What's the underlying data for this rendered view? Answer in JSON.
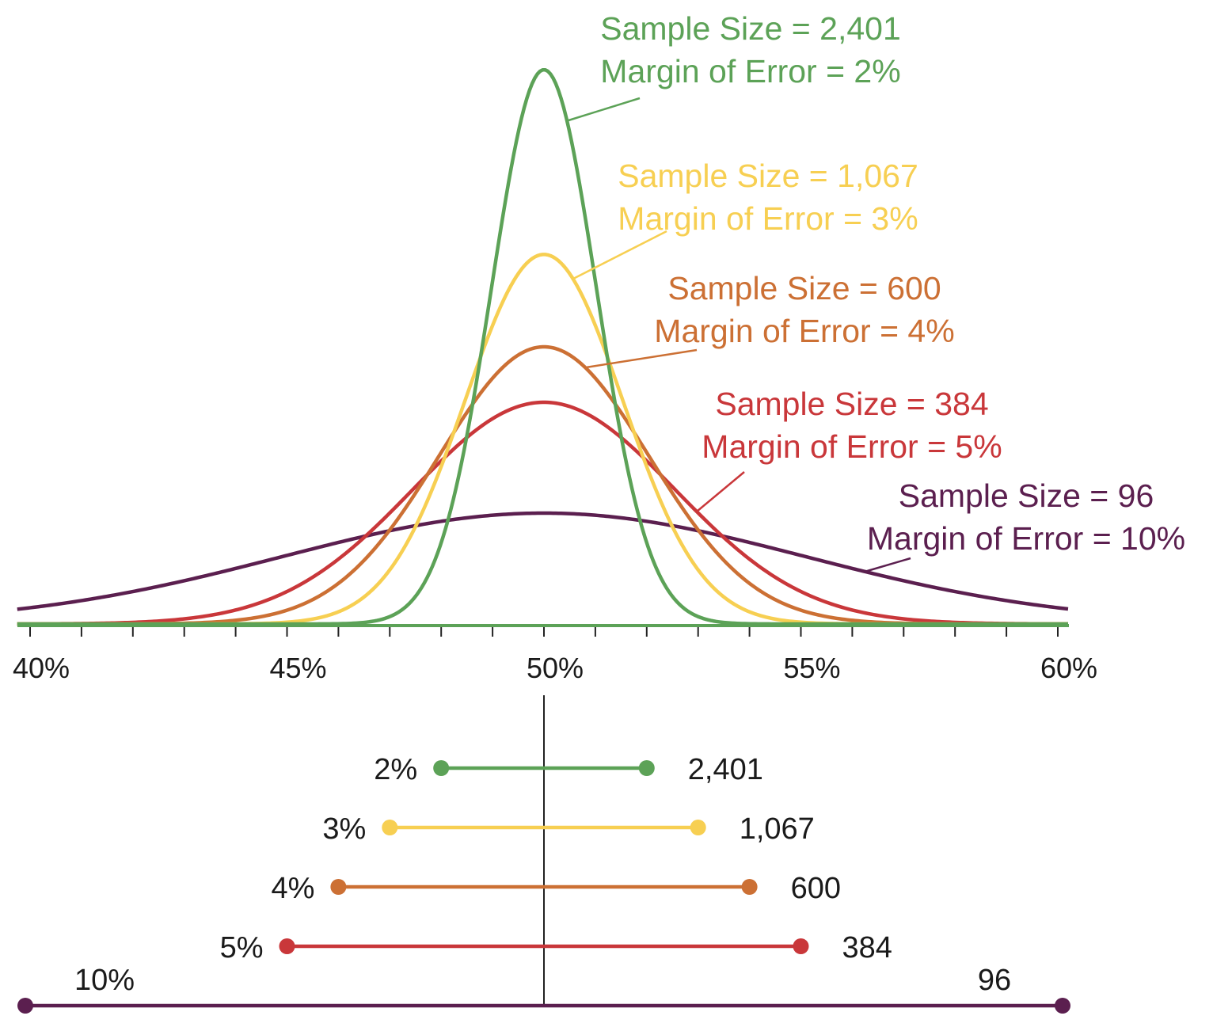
{
  "chart_data": {
    "type": "line",
    "description_free": true,
    "xlim": [
      40,
      60
    ],
    "x_ticks": [
      "40%",
      "45%",
      "50%",
      "55%",
      "60%"
    ],
    "x_tick_values": [
      40,
      45,
      50,
      55,
      60
    ],
    "minor_tick_step": 1,
    "center": 50,
    "series": [
      {
        "key": "n96",
        "sample_size": 96,
        "margin_of_error": 10,
        "color": "#5b1f4f",
        "label_line1": "Sample Size = 96",
        "label_line2": "Margin of Error = 10%",
        "moe_label": "10%",
        "n_label": "96"
      },
      {
        "key": "n384",
        "sample_size": 384,
        "margin_of_error": 5,
        "color": "#c9373a",
        "label_line1": "Sample Size = 384",
        "label_line2": "Margin of Error = 5%",
        "moe_label": "5%",
        "n_label": "384"
      },
      {
        "key": "n600",
        "sample_size": 600,
        "margin_of_error": 4,
        "color": "#cc7034",
        "label_line1": "Sample Size = 600",
        "label_line2": "Margin of Error = 4%",
        "moe_label": "4%",
        "n_label": "600"
      },
      {
        "key": "n1067",
        "sample_size": 1067,
        "margin_of_error": 3,
        "color": "#f7cf52",
        "label_line1": "Sample Size = 1,067",
        "label_line2": "Margin of Error = 3%",
        "moe_label": "3%",
        "n_label": "1,067"
      },
      {
        "key": "n2401",
        "sample_size": 2401,
        "margin_of_error": 2,
        "color": "#5ca257",
        "label_line1": "Sample Size = 2,401",
        "label_line2": "Margin of Error = 2%",
        "moe_label": "2%",
        "n_label": "2,401"
      }
    ],
    "axis_color": "#5ca257",
    "tick_color": "#222222",
    "center_line_color": "#222222"
  }
}
